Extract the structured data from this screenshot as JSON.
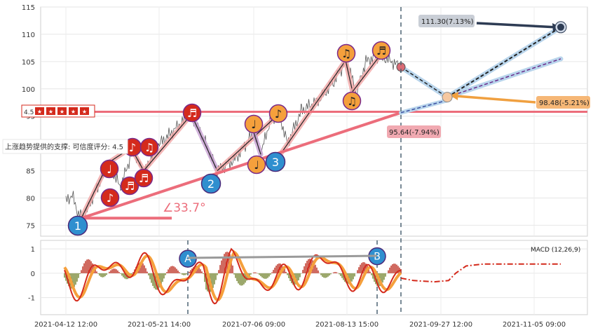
{
  "chart_data": [
    {
      "type": "line",
      "panel": "price",
      "y_ticks": [
        75,
        80,
        85,
        90,
        95,
        100,
        105,
        110,
        115
      ],
      "ylim": [
        73,
        115
      ],
      "x_ticks": [
        "2021-04-12 12:00",
        "2021-05-21 14:00",
        "2021-07-06 09:00",
        "2021-08-13 15:00",
        "2021-09-27 12:00",
        "2021-11-05 09:00"
      ],
      "grid": true,
      "support_label": "上涨趋势提供的支撑: 可信度评分: 4.5",
      "rating_label": "4.5",
      "angle_label": "∠33.7°",
      "callouts": [
        {
          "text": "111.30(7.13%)",
          "value": 111.3
        },
        {
          "text": "98.48(-5.21%)",
          "value": 98.48
        },
        {
          "text": "95.64(-7.94%)",
          "value": 95.64
        }
      ],
      "horizontal_level": 95.8,
      "pattern_points": [
        {
          "label": "1",
          "value": 76.0
        },
        {
          "label": "2",
          "value": 84.7
        },
        {
          "label": "3",
          "value": 88.0
        }
      ],
      "projection_end": 111.3,
      "projection_low": 98.48
    },
    {
      "type": "line",
      "panel": "macd",
      "title": "MACD (12,26,9)",
      "y_ticks": [
        -1,
        0,
        1
      ],
      "ylim": [
        -1.7,
        1.35
      ],
      "markers": [
        "A",
        "B"
      ]
    }
  ],
  "colors": {
    "red_marker": "#d42a1c",
    "orange_marker": "#f5a03c",
    "blue_marker": "#2f8fcf",
    "pink_line": "#ec6d7b",
    "dark_marker": "#2e3c54",
    "callout_gray": "#c9ced6",
    "callout_orange": "#f6b776",
    "callout_pink": "#f1a9b1"
  },
  "icons": [
    "music-note-icon",
    "stars-rating-icon"
  ]
}
